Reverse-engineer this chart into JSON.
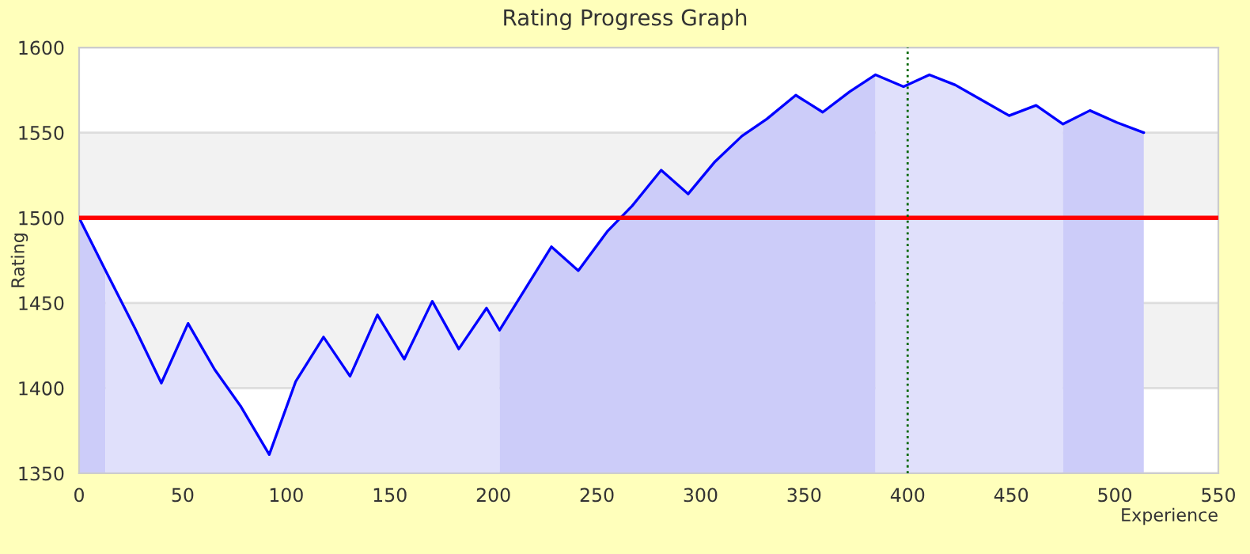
{
  "chart_data": {
    "type": "area",
    "title": "Rating Progress Graph",
    "xlabel": "Experience",
    "ylabel": "Rating",
    "xlim": [
      0,
      550
    ],
    "xticks": [
      0,
      50,
      100,
      150,
      200,
      250,
      300,
      350,
      400,
      450,
      500,
      550
    ],
    "ylim": [
      1350,
      1600
    ],
    "yticks": [
      1350,
      1400,
      1450,
      1500,
      1550,
      1600
    ],
    "grid": "y",
    "bands": [
      {
        "axis": "y",
        "from": 1400,
        "to": 1450,
        "color": "#f2f2f2"
      },
      {
        "axis": "y",
        "from": 1500,
        "to": 1550,
        "color": "#f2f2f2"
      }
    ],
    "ref_lines": [
      {
        "axis": "y",
        "value": 1500,
        "color": "#ff0000",
        "line_style": "solid"
      },
      {
        "axis": "x",
        "value": 400,
        "color": "#006600",
        "line_style": "dotted"
      }
    ],
    "series": [
      {
        "color": "#ccccf9",
        "x": [
          0,
          12.8
        ],
        "values": [
          1500,
          1469
        ]
      },
      {
        "color": "#e0e0fb",
        "x": [
          12.8,
          27,
          39.7,
          52.6,
          65.4,
          78.2,
          91.8,
          104.6,
          118,
          130.8,
          144,
          157,
          170.5,
          183.3,
          196.7,
          203
        ],
        "values": [
          1469,
          1435,
          1403,
          1438,
          1411,
          1389,
          1361,
          1404,
          1430,
          1407,
          1443,
          1417,
          1451,
          1423,
          1447,
          1434
        ]
      },
      {
        "color": "#ccccf9",
        "x": [
          203,
          228,
          241,
          255,
          267,
          281,
          294,
          307,
          320,
          332,
          346,
          359,
          372,
          384.5
        ],
        "values": [
          1434,
          1483,
          1469,
          1492,
          1507,
          1528,
          1514,
          1533,
          1548,
          1558,
          1572,
          1562,
          1574,
          1584
        ]
      },
      {
        "color": "#e0e0fb",
        "x": [
          384.5,
          398,
          410.5,
          423,
          436,
          449,
          462,
          475
        ],
        "values": [
          1584,
          1577,
          1584,
          1578,
          1569,
          1560,
          1566,
          1555
        ]
      },
      {
        "color": "#ccccf9",
        "x": [
          475,
          488,
          501,
          514
        ],
        "values": [
          1555,
          1563,
          1556,
          1550
        ]
      },
      {
        "type": "line",
        "color": "#0000ff",
        "line_style": "solid",
        "x": [
          0,
          12.8,
          27,
          39.7,
          52.6,
          65.4,
          78.2,
          91.8,
          104.6,
          118,
          130.8,
          144,
          157,
          170.5,
          183.3,
          196.7,
          203,
          228,
          241,
          255,
          267,
          281,
          294,
          307,
          320,
          332,
          346,
          359,
          372,
          384.5,
          398,
          410.5,
          423,
          436,
          449,
          462,
          475,
          488,
          501,
          514
        ],
        "values": [
          1500,
          1469,
          1435,
          1403,
          1438,
          1411,
          1389,
          1361,
          1404,
          1430,
          1407,
          1443,
          1417,
          1451,
          1423,
          1447,
          1434,
          1483,
          1469,
          1492,
          1507,
          1528,
          1514,
          1533,
          1548,
          1558,
          1572,
          1562,
          1574,
          1584,
          1577,
          1584,
          1578,
          1569,
          1560,
          1566,
          1555,
          1563,
          1556,
          1550
        ]
      }
    ]
  }
}
